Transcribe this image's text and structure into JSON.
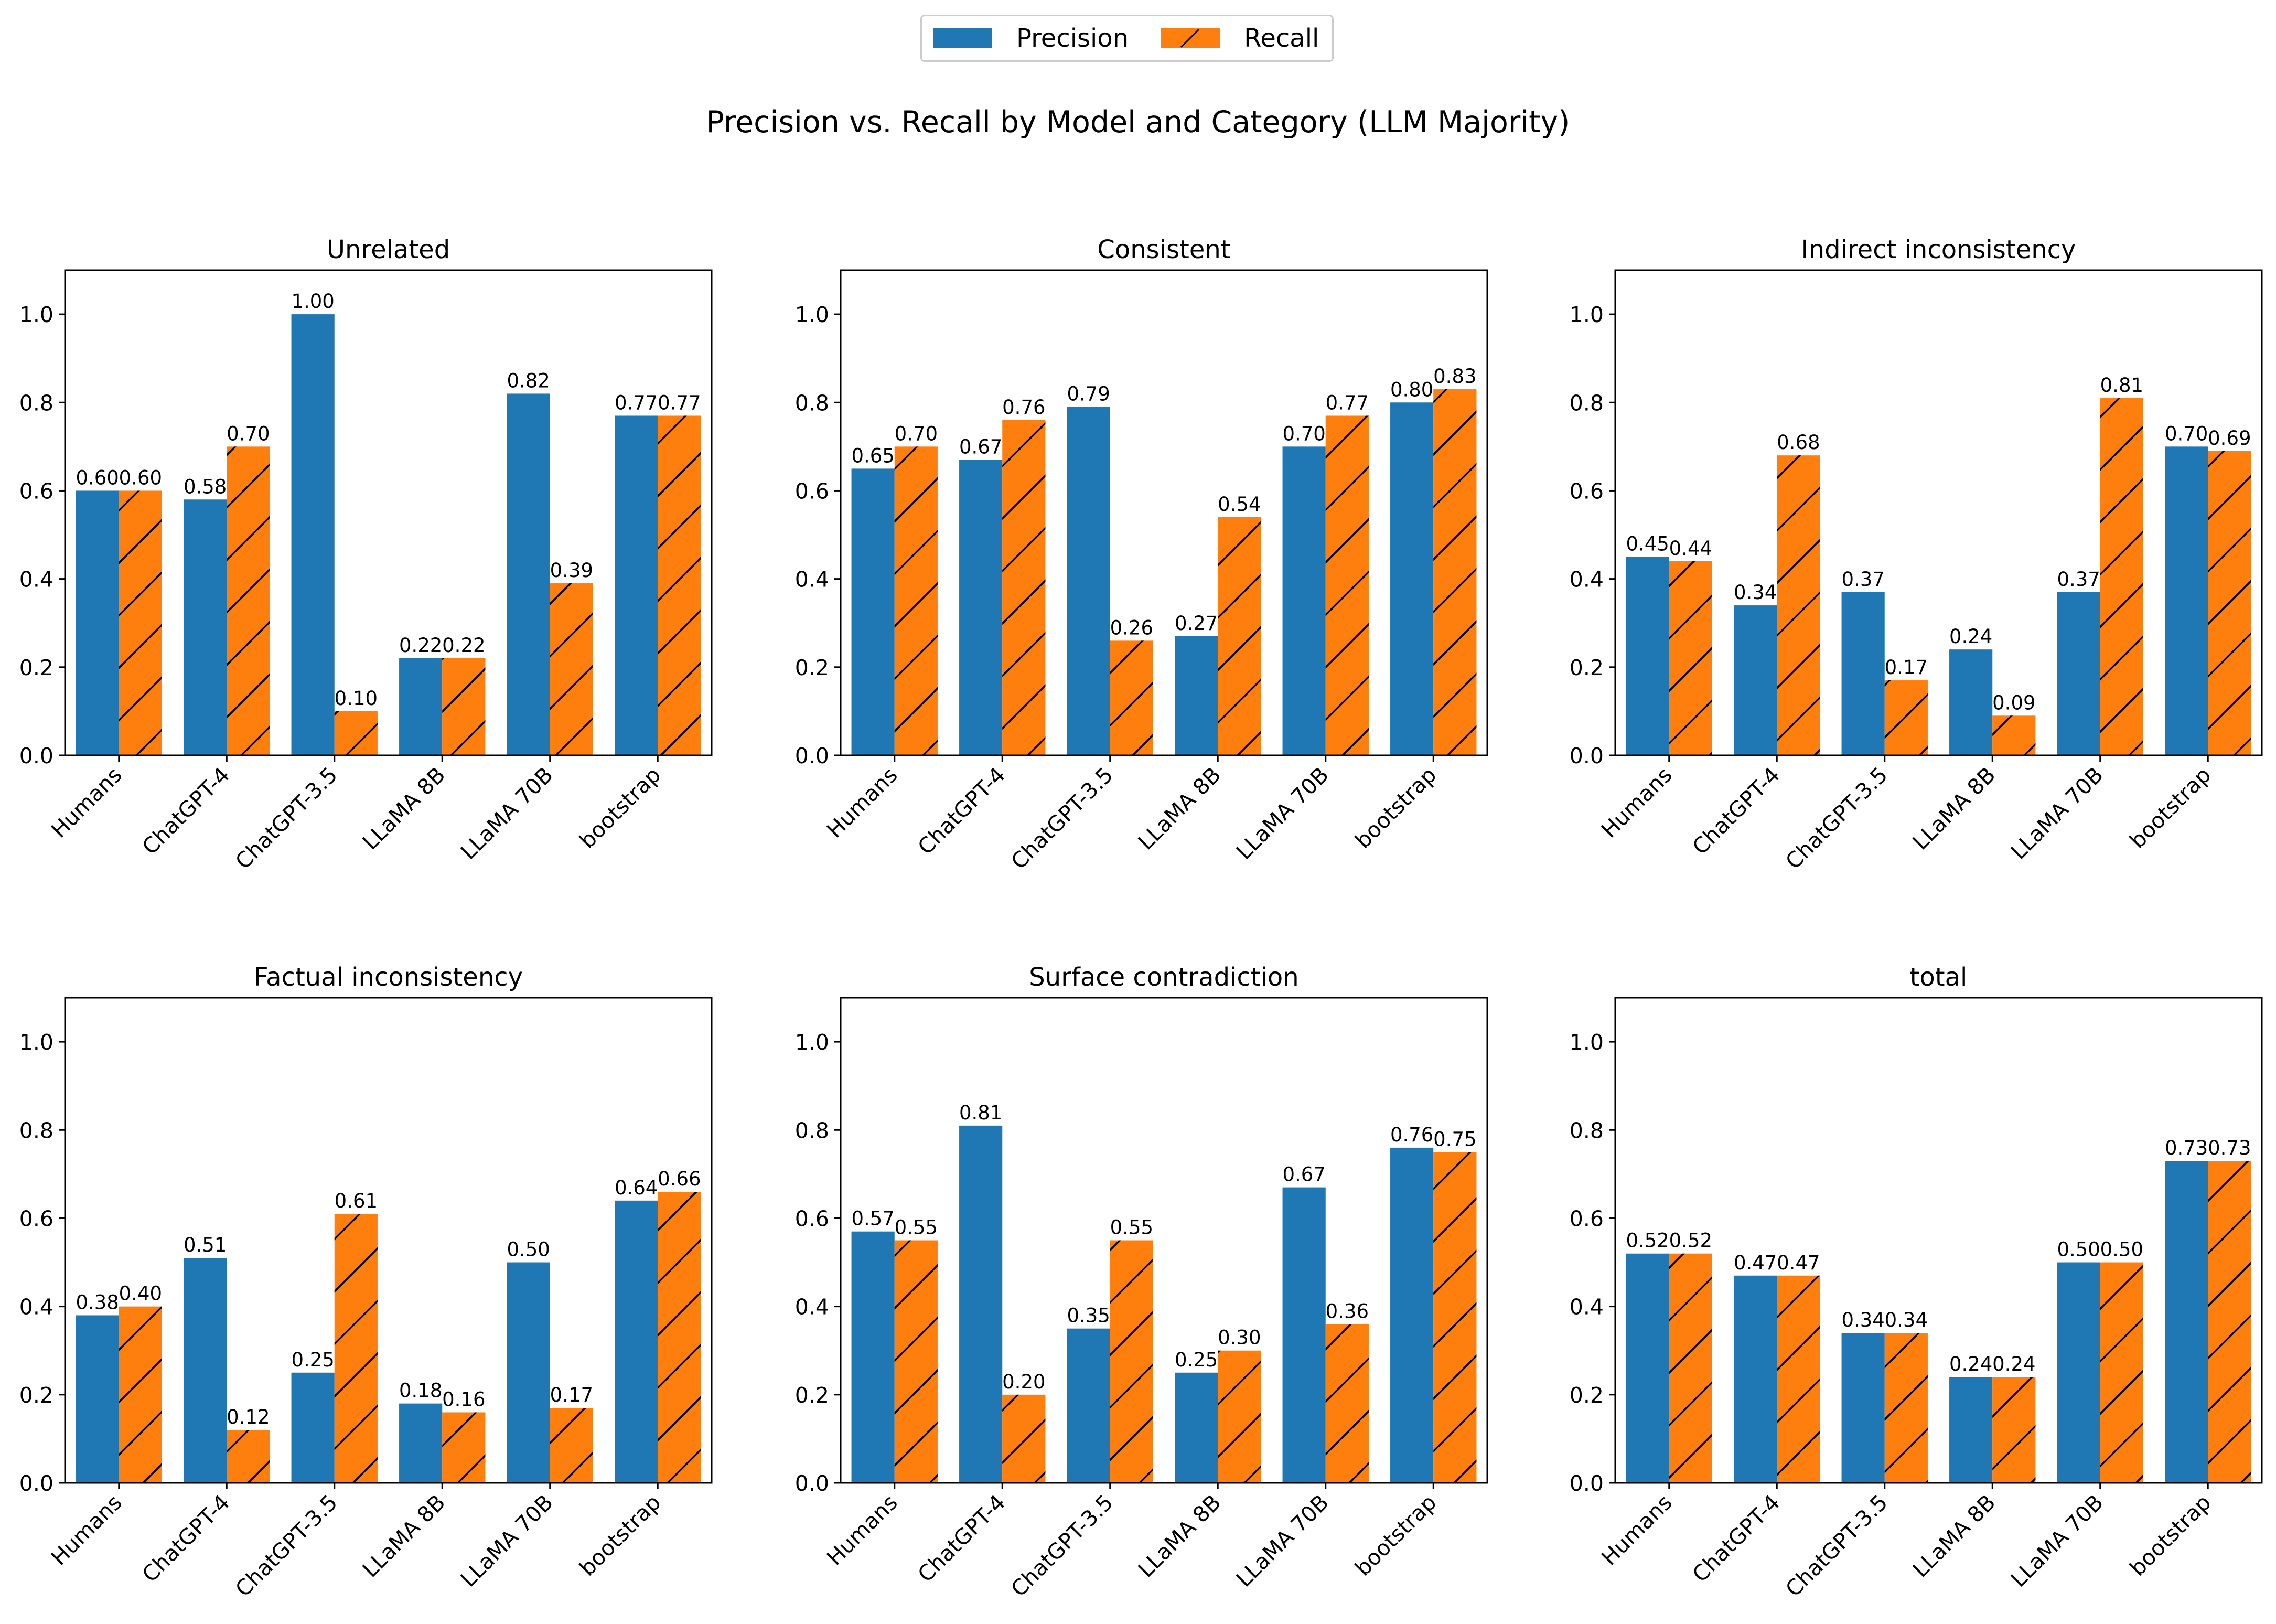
{
  "chart_data": {
    "type": "bar",
    "title": "Precision vs. Recall by Model and Category (LLM Majority)",
    "legend": {
      "placement": "top-center",
      "entries": [
        "Precision",
        "Recall"
      ]
    },
    "colors": {
      "Precision": "#1f77b4",
      "Recall": "#ff7f0e"
    },
    "recall_hatch": "diagonal",
    "categories": [
      "Humans",
      "ChatGPT-4",
      "ChatGPT-3.5",
      "LLaMA 8B",
      "LLaMA 70B",
      "bootstrap"
    ],
    "ylim": [
      0,
      1.1
    ],
    "yticks": [
      "0.0",
      "0.2",
      "0.4",
      "0.6",
      "0.8",
      "1.0"
    ],
    "grid": false,
    "panels": [
      {
        "title": "Unrelated",
        "series": [
          {
            "name": "Precision",
            "values": [
              0.6,
              0.58,
              1.0,
              0.22,
              0.82,
              0.77
            ],
            "labels": [
              "0.60",
              "0.58",
              "1.00",
              "0.22",
              "0.82",
              "0.77"
            ]
          },
          {
            "name": "Recall",
            "values": [
              0.6,
              0.7,
              0.1,
              0.22,
              0.39,
              0.77
            ],
            "labels": [
              "0.60",
              "0.70",
              "0.10",
              "0.22",
              "0.39",
              "0.77"
            ]
          }
        ]
      },
      {
        "title": "Consistent",
        "series": [
          {
            "name": "Precision",
            "values": [
              0.65,
              0.67,
              0.79,
              0.27,
              0.7,
              0.8
            ],
            "labels": [
              "0.65",
              "0.67",
              "0.79",
              "0.27",
              "0.70",
              "0.80"
            ]
          },
          {
            "name": "Recall",
            "values": [
              0.7,
              0.76,
              0.26,
              0.54,
              0.77,
              0.83
            ],
            "labels": [
              "0.70",
              "0.76",
              "0.26",
              "0.54",
              "0.77",
              "0.83"
            ]
          }
        ]
      },
      {
        "title": "Indirect inconsistency",
        "series": [
          {
            "name": "Precision",
            "values": [
              0.45,
              0.34,
              0.37,
              0.24,
              0.37,
              0.7
            ],
            "labels": [
              "0.45",
              "0.34",
              "0.37",
              "0.24",
              "0.37",
              "0.70"
            ]
          },
          {
            "name": "Recall",
            "values": [
              0.44,
              0.68,
              0.17,
              0.09,
              0.81,
              0.69
            ],
            "labels": [
              "0.44",
              "0.68",
              "0.17",
              "0.09",
              "0.81",
              "0.69"
            ]
          }
        ]
      },
      {
        "title": "Factual inconsistency",
        "series": [
          {
            "name": "Precision",
            "values": [
              0.38,
              0.51,
              0.25,
              0.18,
              0.5,
              0.64
            ],
            "labels": [
              "0.38",
              "0.51",
              "0.25",
              "0.18",
              "0.50",
              "0.64"
            ]
          },
          {
            "name": "Recall",
            "values": [
              0.4,
              0.12,
              0.61,
              0.16,
              0.17,
              0.66
            ],
            "labels": [
              "0.40",
              "0.12",
              "0.61",
              "0.16",
              "0.17",
              "0.66"
            ]
          }
        ]
      },
      {
        "title": "Surface contradiction",
        "series": [
          {
            "name": "Precision",
            "values": [
              0.57,
              0.81,
              0.35,
              0.25,
              0.67,
              0.76
            ],
            "labels": [
              "0.57",
              "0.81",
              "0.35",
              "0.25",
              "0.67",
              "0.76"
            ]
          },
          {
            "name": "Recall",
            "values": [
              0.55,
              0.2,
              0.55,
              0.3,
              0.36,
              0.75
            ],
            "labels": [
              "0.55",
              "0.20",
              "0.55",
              "0.30",
              "0.36",
              "0.75"
            ]
          }
        ]
      },
      {
        "title": "total",
        "series": [
          {
            "name": "Precision",
            "values": [
              0.52,
              0.47,
              0.34,
              0.24,
              0.5,
              0.73
            ],
            "labels": [
              "0.52",
              "0.47",
              "0.34",
              "0.24",
              "0.50",
              "0.73"
            ]
          },
          {
            "name": "Recall",
            "values": [
              0.52,
              0.47,
              0.34,
              0.24,
              0.5,
              0.73
            ],
            "labels": [
              "0.52",
              "0.47",
              "0.34",
              "0.24",
              "0.50",
              "0.73"
            ]
          }
        ]
      }
    ]
  }
}
